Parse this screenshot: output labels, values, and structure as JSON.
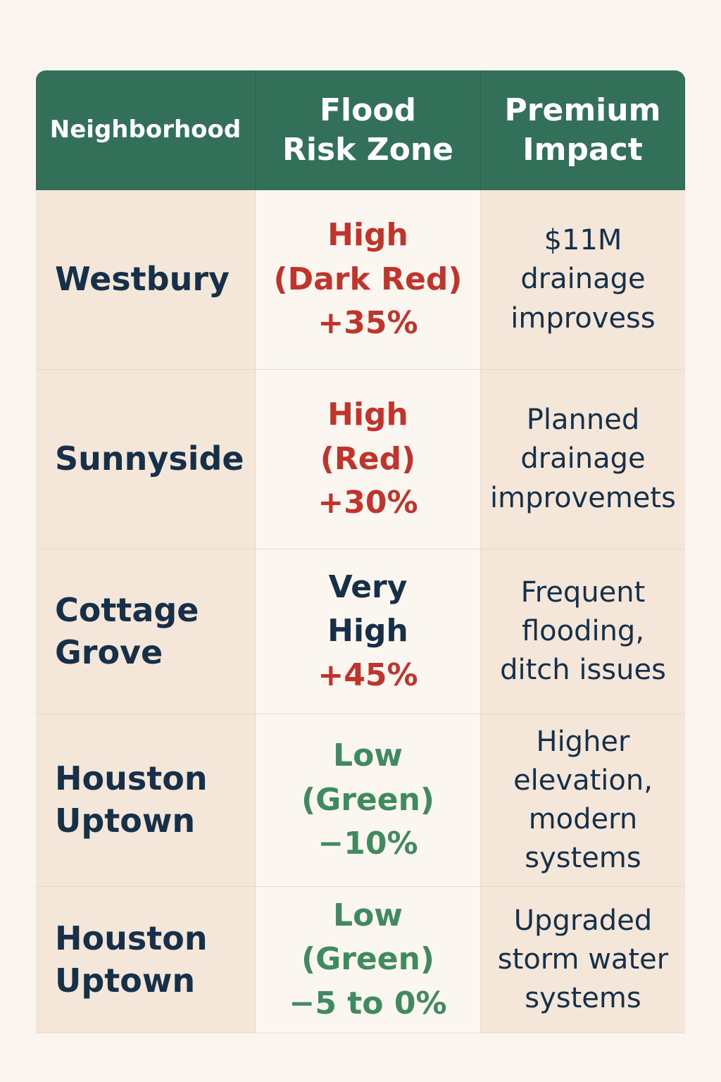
{
  "colors": {
    "header_bg": "#33705a",
    "header_text": "#ffffff",
    "cell_bg": "#f4e6d8",
    "risk_bg": "#fcf6f0",
    "dark_text": "#16304a",
    "high_red": "#c0342c",
    "low_green": "#3f8a5e"
  },
  "table": {
    "headers": [
      "Neighborhood",
      "Flood\nRisk Zone",
      "Premium\nImpact"
    ],
    "rows": [
      {
        "neighborhood": "Westbury",
        "risk_label": "High\n(Dark Red)",
        "risk_change": "+35%",
        "risk_color": "#c0342c",
        "change_color": "#c0342c",
        "impact": "$11M\ndrainage\nimprovess"
      },
      {
        "neighborhood": "Sunnyside",
        "risk_label": "High\n(Red)",
        "risk_change": "+30%",
        "risk_color": "#c0342c",
        "change_color": "#c0342c",
        "impact": "Planned\ndrainage\nimprovemets"
      },
      {
        "neighborhood": "Cottage\nGrove",
        "risk_label": "Very\nHigh",
        "risk_change": "+45%",
        "risk_color": "#16304a",
        "change_color": "#c0342c",
        "impact": "Frequent\nflooding,\nditch issues"
      },
      {
        "neighborhood": "Houston\nUptown",
        "risk_label": "Low\n(Green)",
        "risk_change": "−10%",
        "risk_color": "#3f8a5e",
        "change_color": "#3f8a5e",
        "impact": "Higher\nelevation,\nmodern\nsystems"
      },
      {
        "neighborhood": "Houston\nUptown",
        "risk_label": "Low\n(Green)",
        "risk_change": "−5 to 0%",
        "risk_color": "#3f8a5e",
        "change_color": "#3f8a5e",
        "impact": "Upgraded\nstorm water\nsystems"
      }
    ]
  }
}
